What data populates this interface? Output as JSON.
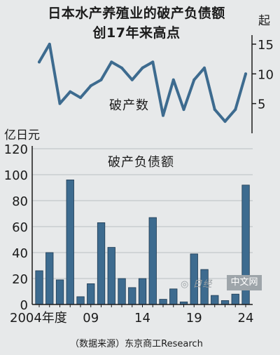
{
  "title_line1": "日本水产养殖业的破产负债额",
  "title_line2": "创17年来高点",
  "source": "（数据来源）东京商工Research",
  "watermark": "中文网",
  "colors": {
    "bar": "#3d6b8f",
    "bar_edge": "#1f3a52",
    "line": "#3d6b8f",
    "background": "#e7e9ea"
  },
  "chart_data": [
    {
      "type": "line",
      "ylabel": "起",
      "series": [
        {
          "name": "破产数",
          "values": [
            12,
            15,
            5,
            7,
            6,
            8,
            9,
            12,
            11,
            9,
            11,
            12,
            3,
            9,
            4,
            9,
            11,
            4,
            2,
            4,
            10
          ]
        }
      ],
      "x": [
        2004,
        2005,
        2006,
        2007,
        2008,
        2009,
        2010,
        2011,
        2012,
        2013,
        2014,
        2015,
        2016,
        2017,
        2018,
        2019,
        2020,
        2021,
        2022,
        2023,
        2024
      ],
      "ylim": [
        0,
        17
      ],
      "yticks": [
        "5",
        "10",
        "15"
      ],
      "ytick_values": [
        5,
        10,
        15
      ],
      "axis_side": "right",
      "grid": false
    },
    {
      "type": "bar",
      "ylabel": "亿日元",
      "series": [
        {
          "name": "破产负债额",
          "values": [
            26,
            40,
            19,
            96,
            6,
            16,
            63,
            44,
            20,
            13,
            20,
            67,
            4,
            12,
            2,
            39,
            27,
            7,
            3,
            8,
            92
          ]
        }
      ],
      "x": [
        2004,
        2005,
        2006,
        2007,
        2008,
        2009,
        2010,
        2011,
        2012,
        2013,
        2014,
        2015,
        2016,
        2017,
        2018,
        2019,
        2020,
        2021,
        2022,
        2023,
        2024
      ],
      "xtick_labels": [
        "2004年度",
        "09",
        "14",
        "19",
        "24"
      ],
      "xtick_indices": [
        0,
        5,
        10,
        15,
        20
      ],
      "yticks": [
        "0",
        "20",
        "40",
        "60",
        "80",
        "100",
        "120"
      ],
      "ytick_values": [
        0,
        20,
        40,
        60,
        80,
        100,
        120
      ],
      "ylim": [
        0,
        120
      ],
      "axis_side": "left",
      "grid": true
    }
  ]
}
